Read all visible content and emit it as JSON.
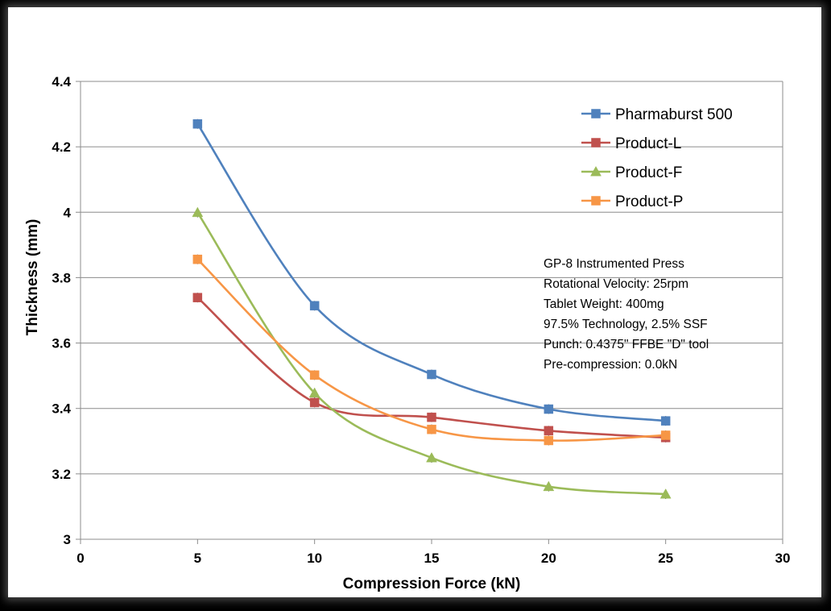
{
  "chart_data": {
    "type": "scatter",
    "xlabel": "Compression Force (kN)",
    "ylabel": "Thickness (mm)",
    "xlim": [
      0,
      30
    ],
    "ylim": [
      3,
      4.4
    ],
    "x_ticks": [
      "0",
      "5",
      "10",
      "15",
      "20",
      "25",
      "30"
    ],
    "y_ticks": [
      "3",
      "3.2",
      "3.4",
      "3.6",
      "3.8",
      "4",
      "4.2",
      "4.4"
    ],
    "grid": "horizontal",
    "legend_position": "top-right",
    "line_style": "smoothed lines with markers",
    "x": [
      5,
      10,
      15,
      20,
      25
    ],
    "series": [
      {
        "name": "Pharmaburst 500",
        "values": [
          4.27,
          3.714,
          3.504,
          3.398,
          3.362
        ],
        "color": "#4f81bd",
        "marker": "square"
      },
      {
        "name": "Product-L",
        "values": [
          3.739,
          3.418,
          3.373,
          3.332,
          3.311
        ],
        "color": "#c0504d",
        "marker": "square"
      },
      {
        "name": "Product-F",
        "values": [
          3.999,
          3.447,
          3.249,
          3.161,
          3.138
        ],
        "color": "#9bbb59",
        "marker": "triangle"
      },
      {
        "name": "Product-P",
        "values": [
          3.856,
          3.502,
          3.336,
          3.302,
          3.318
        ],
        "color": "#f79646",
        "marker": "square"
      }
    ],
    "annotation": [
      "GP-8 Instrumented Press",
      "Rotational Velocity: 25rpm",
      "Tablet Weight: 400mg",
      "97.5% Technology, 2.5% SSF",
      "Punch: 0.4375\" FFBE \"D\" tool",
      "Pre-compression: 0.0kN"
    ]
  }
}
